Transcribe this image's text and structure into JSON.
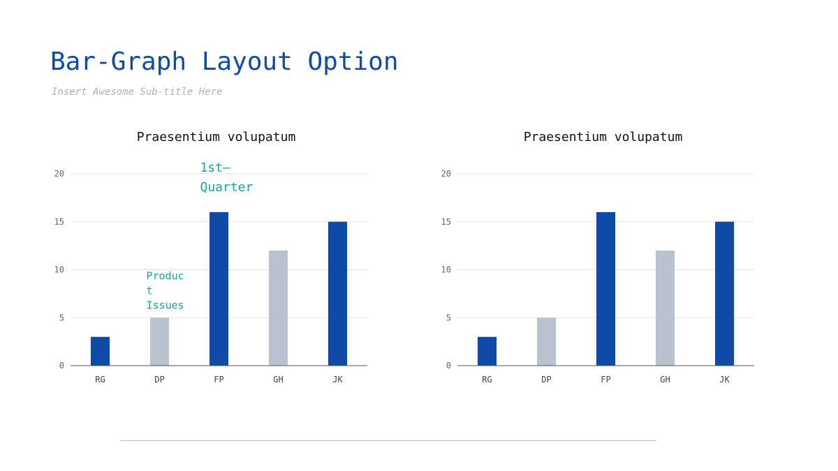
{
  "slide": {
    "title": "Bar-Graph Layout Option",
    "subtitle": "Insert Awesome Sub-title Here"
  },
  "colors": {
    "title": "#0f4aa6",
    "subtitle": "#a8b4c4",
    "bar_primary": "#0f4aa6",
    "bar_secondary": "#b9c3cf",
    "annotation": "#1aa39a",
    "grid": "#e3e3e3",
    "axis_text": "#666666"
  },
  "chart_data": [
    {
      "type": "bar",
      "title": "Praesentium volupatum",
      "categories": [
        "RG",
        "DP",
        "FP",
        "GH",
        "JK"
      ],
      "values": [
        3,
        5,
        16,
        12,
        15
      ],
      "bar_colors": [
        "primary",
        "secondary",
        "primary",
        "secondary",
        "primary"
      ],
      "ylim": [
        0,
        20
      ],
      "yticks": [
        0,
        5,
        10,
        15,
        20
      ],
      "xlabel": "",
      "ylabel": "",
      "grid": true,
      "annotations": [
        {
          "text": "1st— Quarter",
          "lines": [
            "1st—",
            "Quarter"
          ],
          "category": "FP",
          "value": 20.5,
          "size": "large"
        },
        {
          "text": "Product Issues",
          "lines": [
            "Produc",
            "t",
            "Issues"
          ],
          "category": "DP",
          "value": 9,
          "size": "small"
        }
      ]
    },
    {
      "type": "bar",
      "title": "Praesentium volupatum",
      "categories": [
        "RG",
        "DP",
        "FP",
        "GH",
        "JK"
      ],
      "values": [
        3,
        5,
        16,
        12,
        15
      ],
      "bar_colors": [
        "primary",
        "secondary",
        "primary",
        "secondary",
        "primary"
      ],
      "ylim": [
        0,
        20
      ],
      "yticks": [
        0,
        5,
        10,
        15,
        20
      ],
      "xlabel": "",
      "ylabel": "",
      "grid": true,
      "annotations": []
    }
  ]
}
